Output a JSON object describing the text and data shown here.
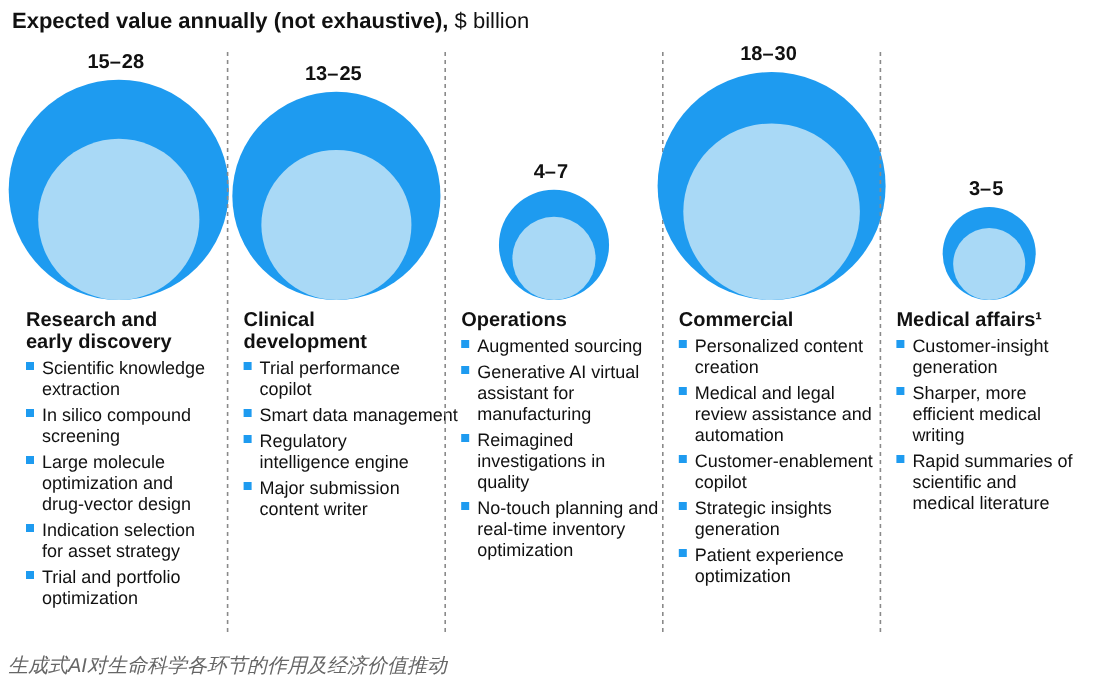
{
  "chart_data": {
    "type": "other",
    "title": "Expected value annually (not exhaustive),",
    "subtitle": "$ billion",
    "categories": [
      "Research and early discovery",
      "Clinical development",
      "Operations",
      "Commercial",
      "Medical affairs¹"
    ],
    "series": [
      {
        "color": "#1e9bf0",
        "values": [
          28,
          25,
          7,
          30,
          5
        ]
      },
      {
        "color": "#a9d9f6",
        "values": [
          15,
          13,
          4,
          18,
          3
        ],
        "value_labels": [
          "15–",
          "13–",
          "4–",
          "18–",
          "3–"
        ]
      }
    ],
    "data_labels": true,
    "annotations": [
      {
        "text": "Scientific knowledge extraction",
        "x": "Research and early discovery"
      },
      {
        "text": "In silico compound screening",
        "x": "Research and early discovery"
      },
      {
        "text": "Large molecule optimization and drug-vector design",
        "x": "Research and early discovery"
      },
      {
        "text": "Indication selection for asset strategy",
        "x": "Research and early discovery"
      },
      {
        "text": "Trial and portfolio optimization",
        "x": "Research and early discovery"
      },
      {
        "text": "Trial performance copilot",
        "x": "Clinical development"
      },
      {
        "text": "Smart data management",
        "x": "Clinical development"
      },
      {
        "text": "Regulatory intelligence engine",
        "x": "Clinical development"
      },
      {
        "text": "Major submission content writer",
        "x": "Clinical development"
      },
      {
        "text": "Augmented sourcing",
        "x": "Operations"
      },
      {
        "text": "Generative AI virtual assistant for manufacturing",
        "x": "Operations"
      },
      {
        "text": "Reimagined investigations in quality",
        "x": "Operations"
      },
      {
        "text": "No-touch planning and real-time inventory optimization",
        "x": "Operations"
      },
      {
        "text": "Personalized content creation",
        "x": "Commercial"
      },
      {
        "text": "Medical and legal review assistance and automation",
        "x": "Commercial"
      },
      {
        "text": "Customer-enablement copilot",
        "x": "Commercial"
      },
      {
        "text": "Strategic insights generation",
        "x": "Commercial"
      },
      {
        "text": "Patient experience optimization",
        "x": "Commercial"
      },
      {
        "text": "Customer-insight generation",
        "x": "Medical affairs¹"
      },
      {
        "text": "Sharper, more efficient medical writing",
        "x": "Medical affairs¹"
      },
      {
        "text": "Rapid summaries of scientific and medical literature",
        "x": "Medical affairs¹"
      },
      "生成式AI对生命科学各环节的作用及经济价值推动"
    ]
  }
}
